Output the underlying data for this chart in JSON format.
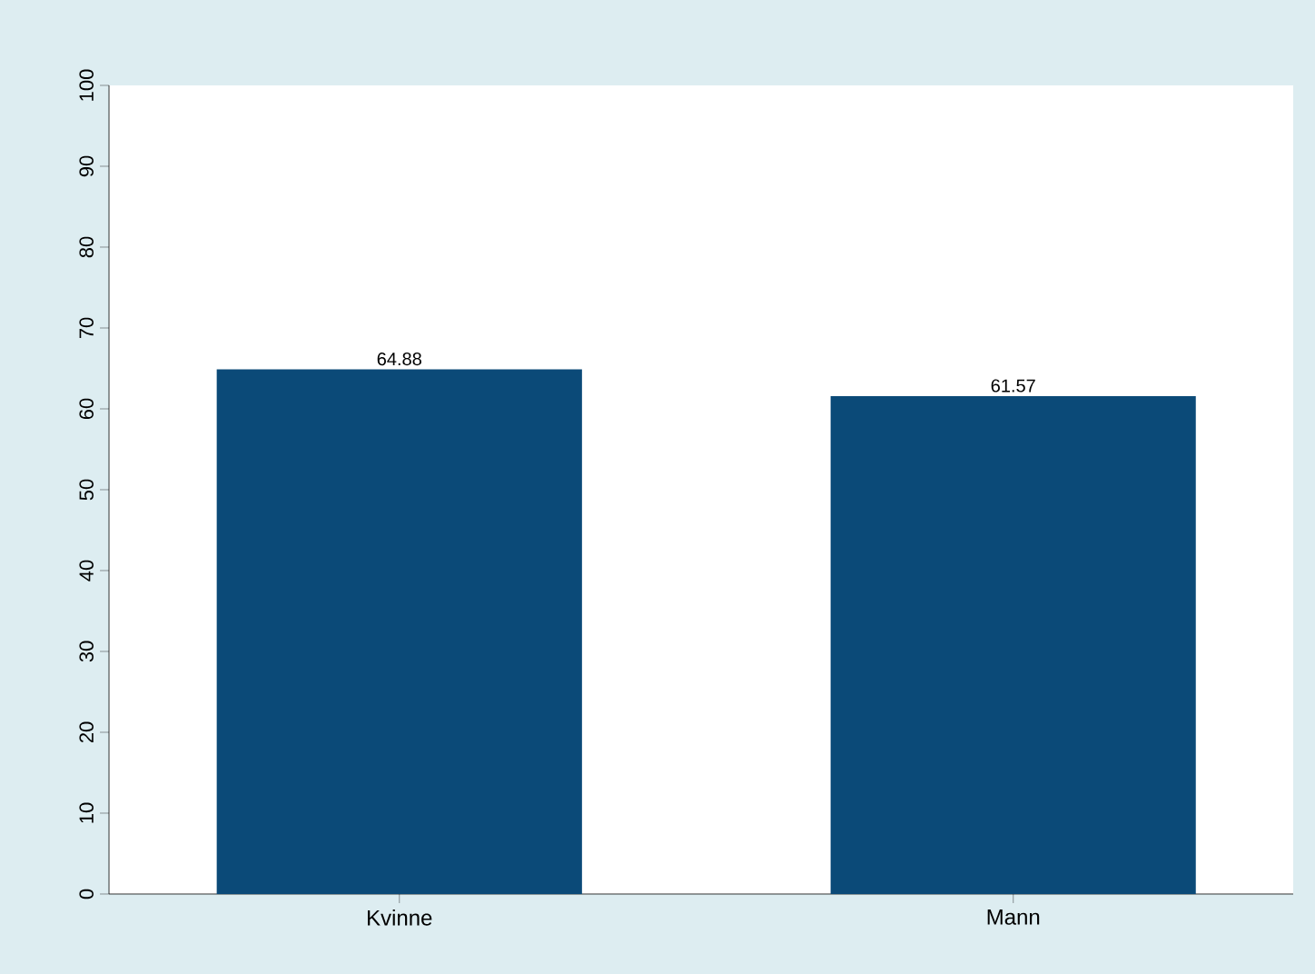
{
  "chart_data": {
    "type": "bar",
    "categories": [
      "Kvinne",
      "Mann"
    ],
    "values": [
      64.88,
      61.57
    ],
    "color": "#0b4a78",
    "ylim": [
      0,
      100
    ],
    "yticks": [
      0,
      10,
      20,
      30,
      40,
      50,
      60,
      70,
      80,
      90,
      100
    ],
    "data_labels": true,
    "grid": false
  }
}
